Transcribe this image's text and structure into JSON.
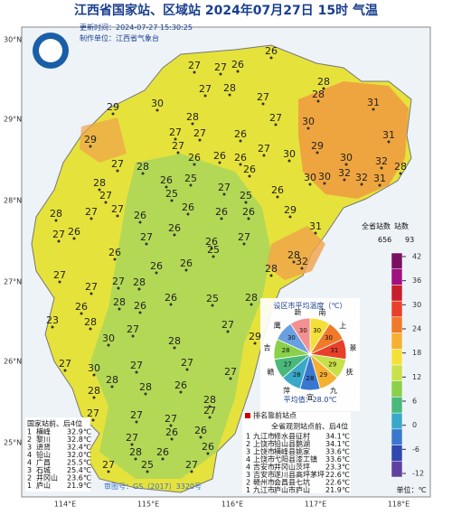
{
  "header": {
    "title": "江西省国家站、区域站  2024年07月27日  15时    气温",
    "update": "更新时间：2024-07-27 15:30:25",
    "maker": "制作单位：江西省气象台"
  },
  "axes": {
    "lat": [
      "30°N",
      "29°N",
      "28°N",
      "27°N",
      "26°N",
      "25°N"
    ],
    "lon": [
      "114°E",
      "115°E",
      "116°E",
      "117°E",
      "118°E"
    ]
  },
  "stations": [
    27,
    27,
    26,
    26,
    28,
    27,
    27,
    28,
    28,
    29,
    30,
    28,
    27,
    27,
    26,
    27,
    30,
    29,
    31,
    31,
    29,
    27,
    26,
    26,
    26,
    27,
    30,
    30,
    32,
    28,
    27,
    28,
    28,
    26,
    25,
    26,
    30,
    32,
    32,
    31,
    27,
    25,
    27,
    25,
    26,
    30,
    28,
    27,
    27,
    26,
    26,
    26,
    26,
    29,
    27,
    26,
    26,
    27,
    26,
    26,
    27,
    31,
    28,
    32,
    26,
    26,
    25,
    27,
    27,
    27,
    28,
    28,
    26,
    28,
    26,
    26,
    25,
    28,
    23,
    28,
    27,
    28,
    27,
    30,
    29,
    27,
    30,
    27,
    27,
    27,
    28,
    28,
    28,
    26,
    28,
    27,
    27,
    27,
    27,
    27,
    26,
    26,
    27,
    28,
    26,
    25,
    27,
    26
  ],
  "legend": {
    "total_label": "全省站数",
    "count_label": "站数",
    "total": 656,
    "count": 93,
    "ticks": [
      42,
      36,
      30,
      24,
      18,
      12,
      6,
      0,
      -6,
      -12
    ],
    "unit": "单位：℃"
  },
  "pie": {
    "title": "设区市平均温度（℃）",
    "cities": [
      "南",
      "上",
      "景",
      "抚",
      "九",
      "宜",
      "萍",
      "赣",
      "吉",
      "鹰",
      "新"
    ],
    "values": [
      30,
      30,
      31,
      29,
      29,
      28,
      28,
      27,
      28,
      30,
      30
    ],
    "average": "平均值：28.0℃"
  },
  "national_rank": {
    "title": "国家站前、后4位",
    "rows": [
      [
        "1",
        "横峰",
        "32.9℃"
      ],
      [
        "2",
        "黎川",
        "32.8℃"
      ],
      [
        "3",
        "进贤",
        "32.4℃"
      ],
      [
        "4",
        "铅山",
        "32.0℃"
      ],
      [
        "4",
        "广昌",
        "25.5℃"
      ],
      [
        "3",
        "石城",
        "25.4℃"
      ],
      [
        "2",
        "井冈山",
        "23.6℃"
      ],
      [
        "1",
        "庐山",
        "21.9℃"
      ]
    ]
  },
  "all_rank": {
    "legend": "排名靠前站点",
    "title": "全省观测站点前、后4位",
    "rows": [
      [
        "1",
        "九江市",
        "修水县",
        "征村",
        "34.1℃"
      ],
      [
        "2",
        "上饶市",
        "铅山县",
        "鹅湖",
        "34.1℃"
      ],
      [
        "3",
        "上饶市",
        "横峰县",
        "姚家",
        "33.6℃"
      ],
      [
        "4",
        "上饶市",
        "弋阳县",
        "漆工镇",
        "33.6℃"
      ],
      [
        "4",
        "吉安市",
        "井冈山",
        "茨坪",
        "23.3℃"
      ],
      [
        "3",
        "吉安市",
        "遂川县",
        "高坪茅坪",
        "22.6℃"
      ],
      [
        "2",
        "赣州市",
        "会昌县",
        "七坑",
        "22.6℃"
      ],
      [
        "1",
        "九江市",
        "庐山市",
        "庐山",
        "21.9℃"
      ]
    ]
  },
  "footer": "审图号：GS（2017）3320号"
}
